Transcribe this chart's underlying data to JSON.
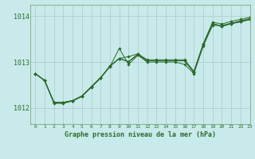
{
  "title": "Graphe pression niveau de la mer (hPa)",
  "background_color": "#c8eaea",
  "grid_color": "#aacaca",
  "line_color": "#2d6b2d",
  "xlim": [
    -0.5,
    23
  ],
  "ylim": [
    1011.65,
    1014.25
  ],
  "yticks": [
    1012,
    1013,
    1014
  ],
  "xticks": [
    0,
    1,
    2,
    3,
    4,
    5,
    6,
    7,
    8,
    9,
    10,
    11,
    12,
    13,
    14,
    15,
    16,
    17,
    18,
    19,
    20,
    21,
    22,
    23
  ],
  "series": [
    [
      1012.75,
      1012.6,
      1012.1,
      1012.1,
      1012.15,
      1012.25,
      1012.45,
      1012.65,
      1012.9,
      1013.3,
      1012.95,
      1013.15,
      1013.0,
      1013.0,
      1013.0,
      1013.0,
      1012.95,
      1012.75,
      1013.35,
      1013.8,
      1013.8,
      1013.85,
      1013.9,
      1013.95
    ],
    [
      1012.75,
      1012.6,
      1012.12,
      1012.12,
      1012.16,
      1012.26,
      1012.46,
      1012.66,
      1012.91,
      1013.08,
      1013.12,
      1013.18,
      1013.05,
      1013.05,
      1013.05,
      1013.05,
      1013.05,
      1012.8,
      1013.4,
      1013.87,
      1013.83,
      1013.89,
      1013.93,
      1013.98
    ],
    [
      1012.75,
      1012.6,
      1012.12,
      1012.12,
      1012.16,
      1012.26,
      1012.46,
      1012.66,
      1012.91,
      1013.08,
      1013.01,
      1013.17,
      1013.03,
      1013.03,
      1013.03,
      1013.03,
      1013.03,
      1012.78,
      1013.38,
      1013.84,
      1013.78,
      1013.84,
      1013.88,
      1013.93
    ],
    [
      1012.75,
      1012.6,
      1012.12,
      1012.12,
      1012.16,
      1012.26,
      1012.46,
      1012.66,
      1012.91,
      1013.08,
      1013.01,
      1013.17,
      1013.03,
      1013.03,
      1013.03,
      1013.03,
      1013.03,
      1012.78,
      1013.38,
      1013.84,
      1013.78,
      1013.84,
      1013.88,
      1013.93
    ],
    [
      1012.75,
      1012.6,
      1012.12,
      1012.12,
      1012.16,
      1012.26,
      1012.46,
      1012.66,
      1012.91,
      1013.08,
      1013.01,
      1013.17,
      1013.03,
      1013.03,
      1013.03,
      1013.03,
      1013.03,
      1012.78,
      1013.38,
      1013.84,
      1013.78,
      1013.84,
      1013.88,
      1013.93
    ]
  ]
}
